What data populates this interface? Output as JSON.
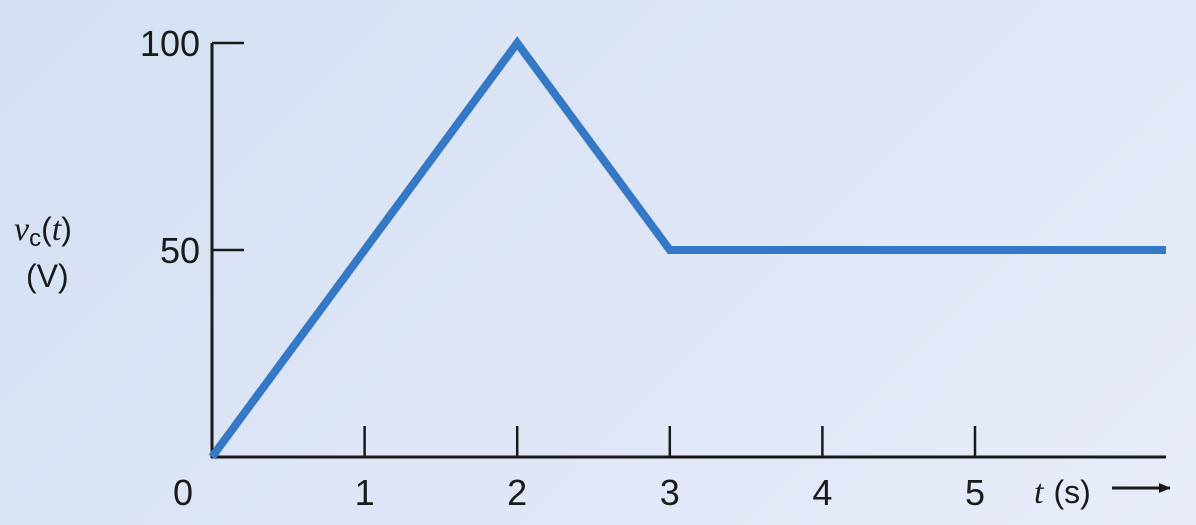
{
  "chart_data": {
    "type": "line",
    "title": "",
    "ylabel": {
      "symbol": "v",
      "subscript": "c",
      "argument": "(t)",
      "arg_open": "(",
      "arg_var": "t",
      "arg_close": ")",
      "unit": "(V)"
    },
    "xlabel": {
      "symbol": "t",
      "unit": "(s)"
    },
    "xlim": [
      0,
      6.3
    ],
    "ylim": [
      0,
      100
    ],
    "x_ticks": [
      1,
      2,
      3,
      4,
      5
    ],
    "x_tick_labels": [
      "1",
      "2",
      "3",
      "4",
      "5"
    ],
    "y_ticks": [
      50,
      100
    ],
    "y_tick_labels": [
      "50",
      "100"
    ],
    "origin_label": "0",
    "grid": false,
    "x_axis_arrow": true,
    "series": [
      {
        "x": [
          0,
          2,
          3,
          6.3
        ],
        "y": [
          0,
          100,
          50,
          50
        ],
        "color": "#3478c6"
      }
    ],
    "axis_color": "#1a1a1a"
  }
}
